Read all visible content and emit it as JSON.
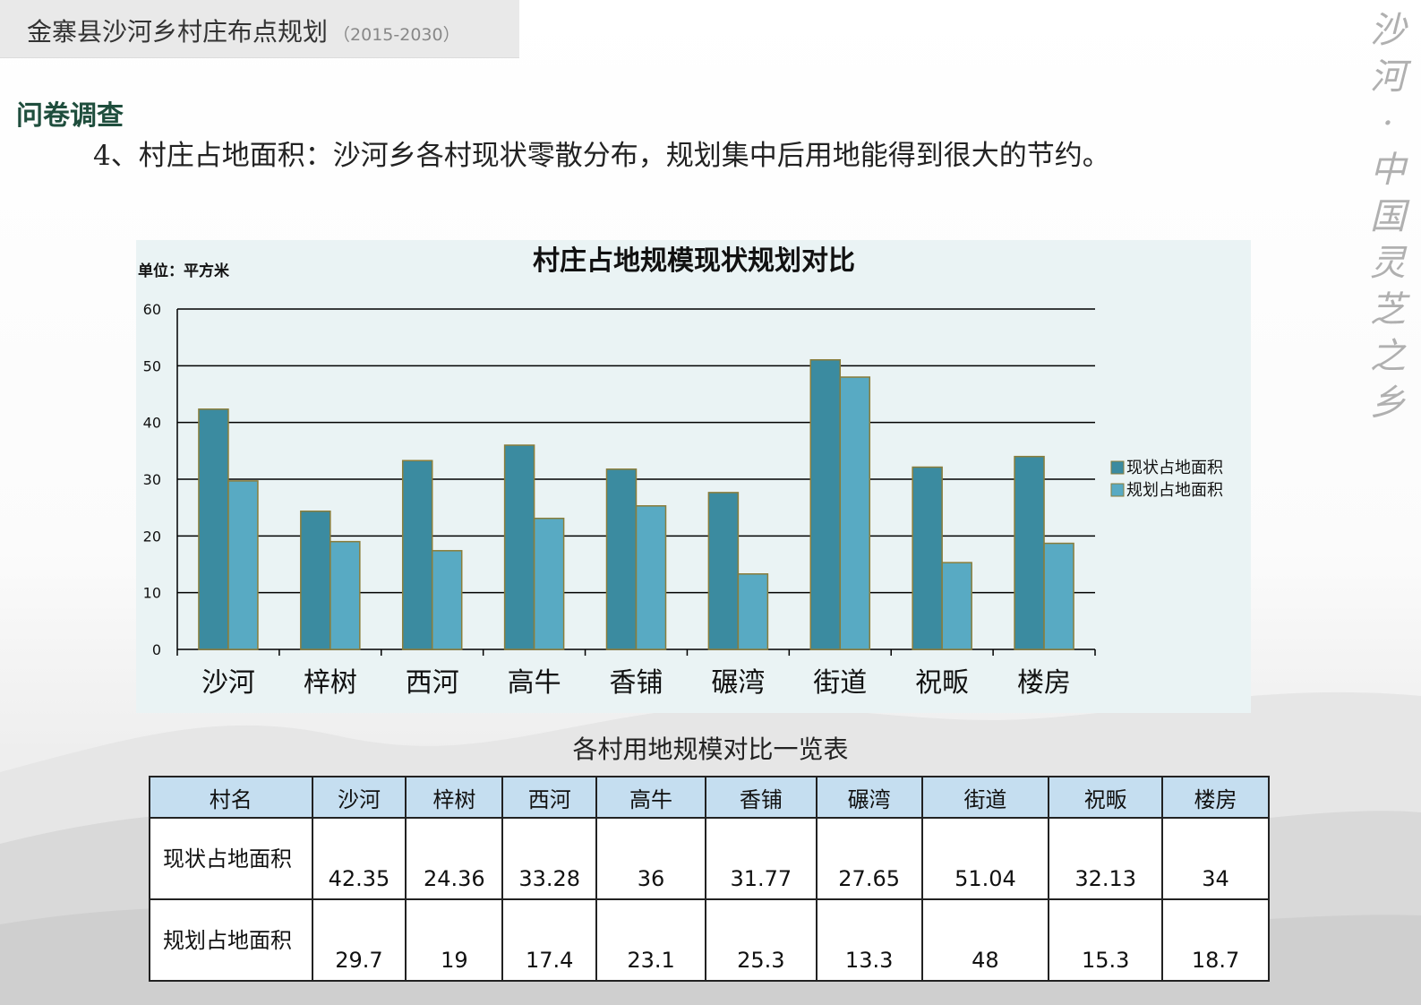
{
  "header": {
    "title": "金寨县沙河乡村庄布点规划",
    "years": "（2015-2030）"
  },
  "section_title": "问卷调查",
  "intro": "4、村庄占地面积：沙河乡各村现状零散分布，规划集中后用地能得到很大的节约。",
  "side_deco": [
    "沙",
    "河",
    "·",
    "中",
    "国",
    "灵",
    "芝",
    "之",
    "乡"
  ],
  "colors": {
    "series_current": "#3b8ba0",
    "series_plan": "#58aac3",
    "bar_stroke": "#8a7d3a",
    "table_header": "#c5def0"
  },
  "chart_data": {
    "type": "bar",
    "title": "村庄占地规模现状规划对比",
    "unit_label": "单位：平方米",
    "categories": [
      "沙河",
      "梓树",
      "西河",
      "高牛",
      "香铺",
      "碾湾",
      "街道",
      "祝畈",
      "楼房"
    ],
    "series": [
      {
        "name": "现状占地面积",
        "values": [
          42.35,
          24.36,
          33.28,
          36,
          31.77,
          27.65,
          51.04,
          32.13,
          34
        ]
      },
      {
        "name": "规划占地面积",
        "values": [
          29.7,
          19,
          17.4,
          23.1,
          25.3,
          13.3,
          48,
          15.3,
          18.7
        ]
      }
    ],
    "ylim": [
      0,
      60
    ],
    "yticks": [
      0,
      10,
      20,
      30,
      40,
      50,
      60
    ],
    "grid": true,
    "legend_position": "right"
  },
  "table": {
    "caption": "各村用地规模对比一览表",
    "header": [
      "村名",
      "沙河",
      "梓树",
      "西河",
      "高牛",
      "香铺",
      "碾湾",
      "街道",
      "祝畈",
      "楼房"
    ],
    "rows": [
      {
        "label": "现状占地面积",
        "cells": [
          "42.35",
          "24.36",
          "33.28",
          "36",
          "31.77",
          "27.65",
          "51.04",
          "32.13",
          "34"
        ]
      },
      {
        "label": "规划占地面积",
        "cells": [
          "29.7",
          "19",
          "17.4",
          "23.1",
          "25.3",
          "13.3",
          "48",
          "15.3",
          "18.7"
        ]
      }
    ]
  }
}
